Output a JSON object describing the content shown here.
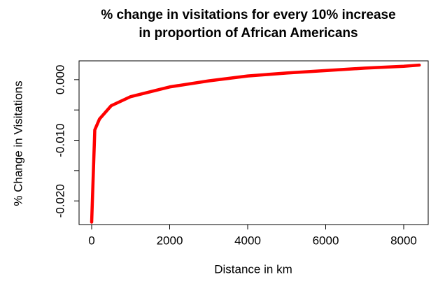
{
  "chart_data": {
    "type": "line",
    "title": [
      "% change in visitations for every 10% increase",
      "in proportion of African Americans"
    ],
    "x_label": "Distance in km",
    "y_label": "% Change in Visitations",
    "x": [
      0,
      80,
      200,
      500,
      1000,
      2000,
      3000,
      4000,
      5000,
      6000,
      7000,
      8000,
      8400
    ],
    "series": [
      {
        "color": "#ff0000",
        "values": [
          -0.0235,
          -0.0083,
          -0.0065,
          -0.0043,
          -0.0028,
          -0.0012,
          -0.0002,
          0.0006,
          0.0011,
          0.0015,
          0.0019,
          0.0022,
          0.0024
        ]
      }
    ],
    "xlim": [
      -323,
      8628
    ],
    "ylim": [
      -0.0239,
      0.0031
    ],
    "xticks": [
      0,
      2000,
      4000,
      6000,
      8000
    ],
    "yticks": [
      {
        "value": -0.02,
        "label": "-0.020"
      },
      {
        "value": -0.015,
        "label": null
      },
      {
        "value": -0.01,
        "label": "-0.010"
      },
      {
        "value": -0.005,
        "label": null
      },
      {
        "value": 0,
        "label": "0.000"
      }
    ],
    "grid": false
  }
}
